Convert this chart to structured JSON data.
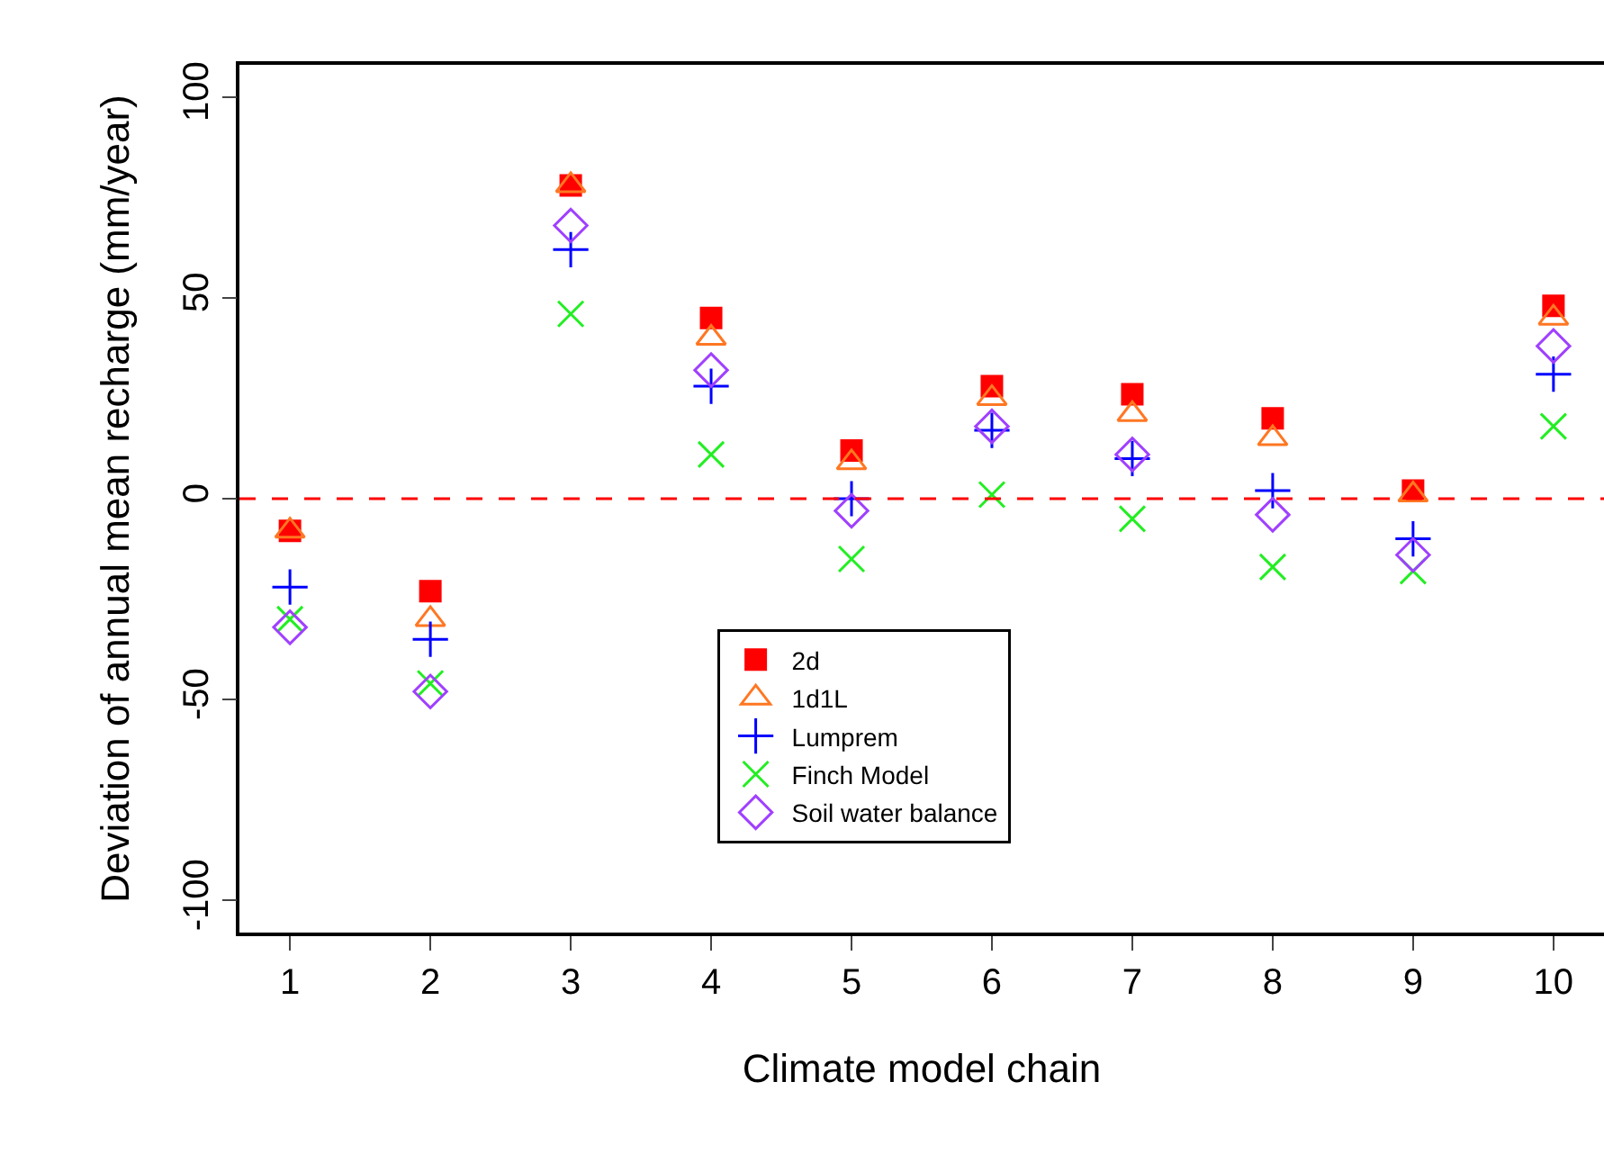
{
  "chart_data": {
    "type": "scatter",
    "xlabel": "Climate model chain",
    "ylabel": "Deviation of annual mean recharge (mm/year)",
    "x": [
      1,
      2,
      3,
      4,
      5,
      6,
      7,
      8,
      9,
      10
    ],
    "xlim": [
      0.64,
      10.36
    ],
    "xticks": [
      1,
      2,
      3,
      4,
      5,
      6,
      7,
      8,
      9,
      10
    ],
    "ylim": [
      -108,
      108
    ],
    "yticks": [
      -100,
      -50,
      0,
      50,
      100
    ],
    "grid": false,
    "legend": "bottom",
    "series": [
      {
        "name": "2d",
        "color": "#ff0000",
        "marker": "square",
        "values": [
          -8,
          -23,
          78,
          45,
          12,
          28,
          26,
          20,
          2,
          48
        ]
      },
      {
        "name": "1d1L",
        "color": "#ff7722",
        "marker": "triangle",
        "values": [
          -8,
          -30,
          78,
          40,
          9,
          25,
          21,
          15,
          1,
          45
        ]
      },
      {
        "name": "Lumprem",
        "color": "#0000ff",
        "marker": "cross",
        "values": [
          -22,
          -35,
          62,
          28,
          0,
          17,
          10,
          2,
          -10,
          31
        ]
      },
      {
        "name": "Finch Model",
        "color": "#22ee22",
        "marker": "x",
        "values": [
          -30,
          -46,
          46,
          11,
          -15,
          1,
          -5,
          -17,
          -18,
          18
        ]
      },
      {
        "name": "Soil water balance",
        "color": "#a040ff",
        "marker": "diamond",
        "values": [
          -32,
          -48,
          68,
          32,
          -3,
          18,
          11,
          -4,
          -14,
          38
        ]
      }
    ],
    "ref_lines": [
      {
        "axis": "y",
        "value": 0,
        "color": "#ff0000",
        "line_style": "dashed"
      }
    ]
  }
}
